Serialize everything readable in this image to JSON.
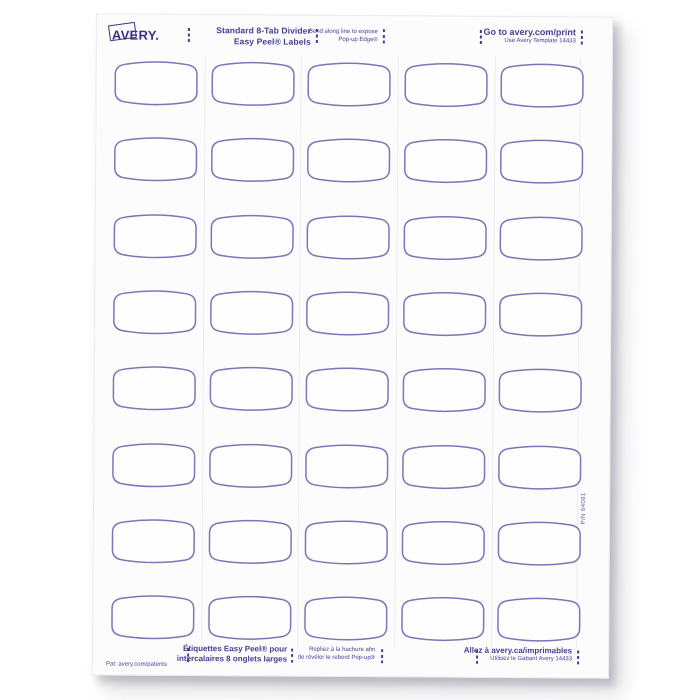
{
  "sheet": {
    "header": {
      "brand": "AVERY.",
      "title_line1": "Standard 8-Tab Divider",
      "title_line2": "Easy Peel® Labels",
      "bend_line1": "Bend along line to expose",
      "bend_line2": "Pop-up Edge®",
      "print_line1": "Go to avery.com/print",
      "print_line2": "Use Avery Template 14433"
    },
    "grid": {
      "rows": 8,
      "cols": 5,
      "label_count": 40
    },
    "part_number": "P/N 64081",
    "footer": {
      "patents": "Pat: avery.com/patents",
      "fr_title_line1": "Étiquettes Easy Peel® pour",
      "fr_title_line2": "intercalaires 8 onglets larges",
      "fr_bend_line1": "Repliez à la hachure afin",
      "fr_bend_line2": "de révéler le rebord Pop-up®",
      "fr_print_line1": "Allez à avery.ca/imprimables",
      "fr_print_line2": "Utilisez le Gabarit Avery 14433"
    }
  },
  "colors": {
    "paper": "#fcfcfd",
    "ink": "#453e95",
    "brand": "#3a3284",
    "outline": "#7c75b8",
    "cut_line": "#ededf2",
    "backdrop": "#ffffff"
  }
}
